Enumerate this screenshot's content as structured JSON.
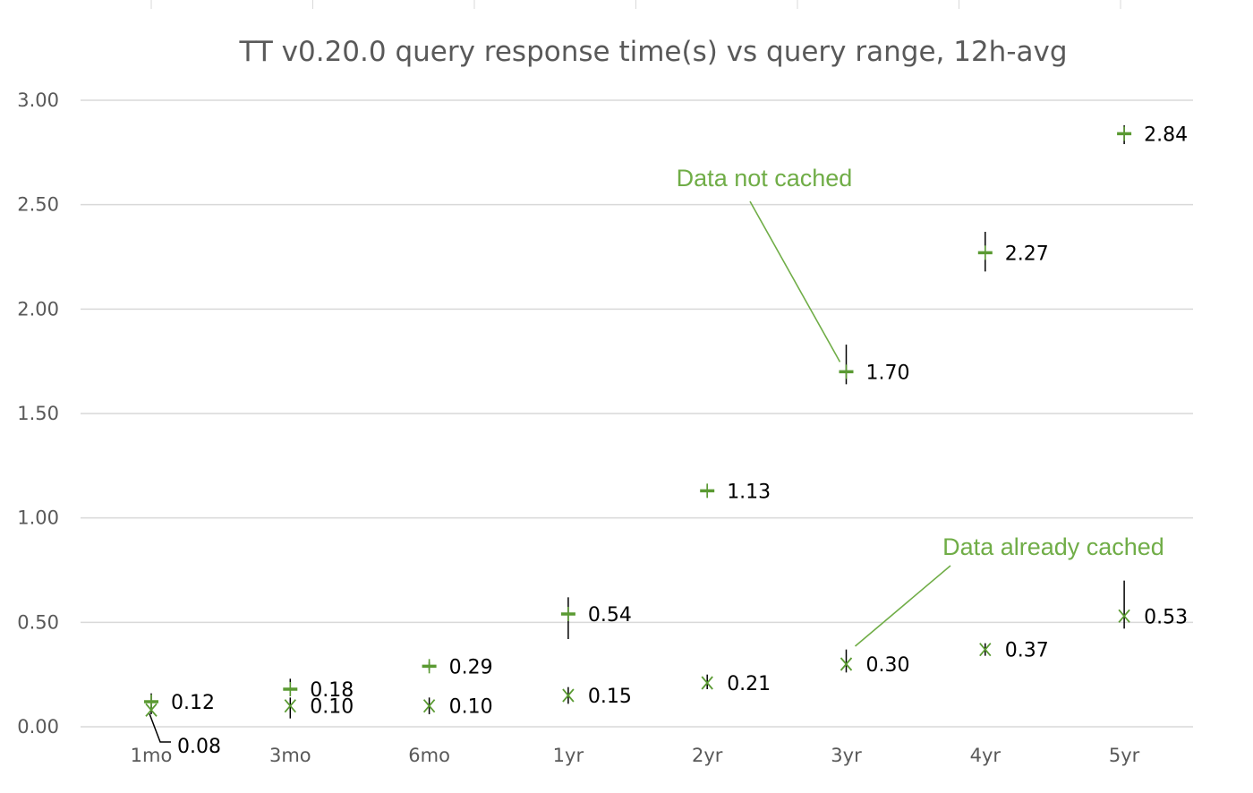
{
  "chart_data": {
    "type": "scatter",
    "title": "TT v0.20.0 query response time(s) vs query range, 12h-avg",
    "xlabel": "",
    "ylabel": "",
    "categories": [
      "1mo",
      "3mo",
      "6mo",
      "1yr",
      "2yr",
      "3yr",
      "4yr",
      "5yr"
    ],
    "ylim": [
      0,
      3.0
    ],
    "yticks": [
      "0.00",
      "0.50",
      "1.00",
      "1.50",
      "2.00",
      "2.50",
      "3.00"
    ],
    "grid": "horizontal",
    "series": [
      {
        "marker": "plus",
        "color": "#5a9a32",
        "values": [
          0.12,
          0.18,
          0.29,
          0.54,
          1.13,
          1.7,
          2.27,
          2.84
        ],
        "labels": [
          "0.12",
          "0.18",
          "0.29",
          "0.54",
          "1.13",
          "1.70",
          "2.27",
          "2.84"
        ],
        "error_low": [
          0.08,
          0.15,
          0.27,
          0.42,
          1.1,
          1.64,
          2.18,
          2.79
        ],
        "error_high": [
          0.16,
          0.23,
          0.31,
          0.62,
          1.16,
          1.83,
          2.37,
          2.88
        ]
      },
      {
        "marker": "x",
        "color": "#5a9a32",
        "values": [
          0.08,
          0.1,
          0.1,
          0.15,
          0.21,
          0.3,
          0.37,
          0.53
        ],
        "labels": [
          "0.08",
          "0.10",
          "0.10",
          "0.15",
          "0.21",
          "0.30",
          "0.37",
          "0.53"
        ],
        "error_low": [
          0.06,
          0.04,
          0.06,
          0.11,
          0.18,
          0.26,
          0.34,
          0.47
        ],
        "error_high": [
          0.1,
          0.14,
          0.14,
          0.19,
          0.25,
          0.37,
          0.4,
          0.7
        ]
      }
    ],
    "annotations": [
      {
        "text": "Data not cached",
        "color": "#70ad47",
        "category": "3yr",
        "value": 1.7
      },
      {
        "text": "Data already cached",
        "color": "#70ad47",
        "category": "3yr",
        "value": 0.3
      }
    ]
  }
}
